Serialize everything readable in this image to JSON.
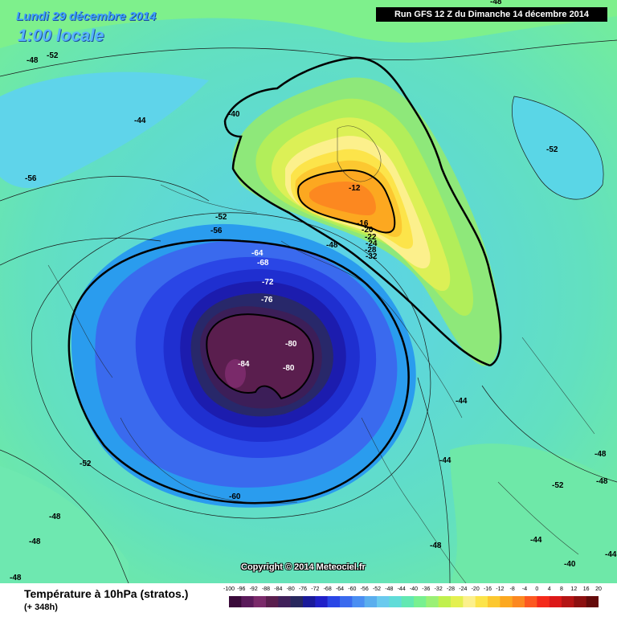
{
  "header": {
    "date_title": "Lundi 29 décembre 2014",
    "time_title": "1:00 locale",
    "run_label": "Run GFS 12 Z du Dimanche 14 décembre 2014"
  },
  "copyright": "Copyright © 2014 Meteociel.fr",
  "footer": {
    "title": "Température à 10hPa (stratos.)",
    "subtitle": "(+ 348h)"
  },
  "legend": {
    "ticks": [
      "-100",
      "-96",
      "-92",
      "-88",
      "-84",
      "-80",
      "-76",
      "-72",
      "-68",
      "-64",
      "-60",
      "-56",
      "-52",
      "-48",
      "-44",
      "-40",
      "-36",
      "-32",
      "-28",
      "-24",
      "-20",
      "-16",
      "-12",
      "-8",
      "-4",
      "0",
      "4",
      "8",
      "12",
      "16",
      "20"
    ],
    "colors": [
      "#3a0a3a",
      "#5a1a5a",
      "#7a2a6a",
      "#5a1e4e",
      "#40205a",
      "#28285e",
      "#1a1a9a",
      "#2020c8",
      "#2a46e6",
      "#3a6aee",
      "#4a8ef2",
      "#5aaeee",
      "#6acaee",
      "#60dcd8",
      "#62e8b2",
      "#78f090",
      "#9af076",
      "#c0f04e",
      "#e4f050",
      "#fcf08c",
      "#fce44a",
      "#fcc830",
      "#fca820",
      "#fc8820",
      "#fc5820",
      "#f42a1a",
      "#dc1818",
      "#b41414",
      "#8c1010",
      "#640a0a"
    ]
  },
  "contour_labels": [
    {
      "text": "-48"
    },
    {
      "text": "-52"
    },
    {
      "text": "-48"
    },
    {
      "text": "-44"
    },
    {
      "text": "-40"
    },
    {
      "text": "-56"
    },
    {
      "text": "-52"
    },
    {
      "text": "-56"
    },
    {
      "text": "-52"
    },
    {
      "text": "-12"
    },
    {
      "text": "-16"
    },
    {
      "text": "-20"
    },
    {
      "text": "-22"
    },
    {
      "text": "-24"
    },
    {
      "text": "-28"
    },
    {
      "text": "-32"
    },
    {
      "text": "-48"
    },
    {
      "text": "-64"
    },
    {
      "text": "-68"
    },
    {
      "text": "-72"
    },
    {
      "text": "-76"
    },
    {
      "text": "-80"
    },
    {
      "text": "-84"
    },
    {
      "text": "-80"
    },
    {
      "text": "-44"
    },
    {
      "text": "-44"
    },
    {
      "text": "-52"
    },
    {
      "text": "-48"
    },
    {
      "text": "-52"
    },
    {
      "text": "-60"
    },
    {
      "text": "-48"
    },
    {
      "text": "-48"
    },
    {
      "text": "-44"
    },
    {
      "text": "-48"
    },
    {
      "text": "-48"
    },
    {
      "text": "-40"
    },
    {
      "text": "-44"
    },
    {
      "text": "-48"
    }
  ]
}
